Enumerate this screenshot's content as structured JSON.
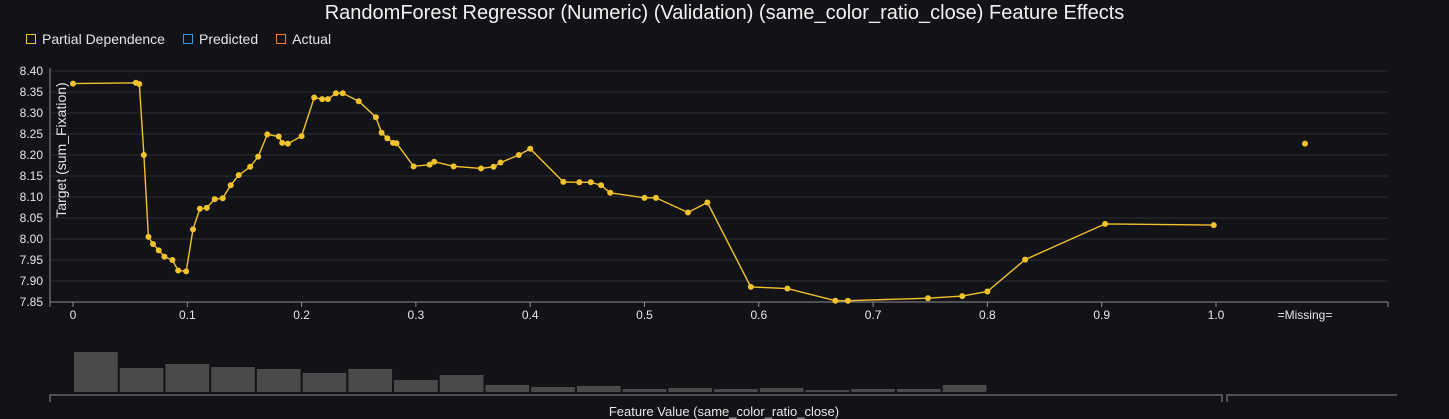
{
  "title": "RandomForest Regressor (Numeric) (Validation) (same_color_ratio_close) Feature Effects",
  "legend": [
    {
      "label": "Partial Dependence",
      "color": "#f2c12e"
    },
    {
      "label": "Predicted",
      "color": "#2e9be6"
    },
    {
      "label": "Actual",
      "color": "#e87e2c"
    }
  ],
  "chart_data": {
    "type": "line",
    "title": "RandomForest Regressor (Numeric) (Validation) (same_color_ratio_close) Feature Effects",
    "xlabel": "Feature Value (same_color_ratio_close)",
    "ylabel": "Target (sum_Fixation)",
    "xlim": [
      -0.02,
      1.15
    ],
    "ylim": [
      7.85,
      8.4
    ],
    "x_ticks": [
      "0",
      "0.1",
      "0.2",
      "0.3",
      "0.4",
      "0.5",
      "0.6",
      "0.7",
      "0.8",
      "0.9",
      "1.0"
    ],
    "y_ticks": [
      "7.85",
      "7.90",
      "7.95",
      "8.00",
      "8.05",
      "8.10",
      "8.15",
      "8.20",
      "8.25",
      "8.30",
      "8.35",
      "8.40"
    ],
    "missing_label": "=Missing=",
    "grid": true,
    "legend_position": "top-left",
    "series": [
      {
        "name": "Partial Dependence",
        "color": "#f2c12e",
        "x": [
          0,
          0.055,
          0.058,
          0.062,
          0.066,
          0.07,
          0.075,
          0.08,
          0.087,
          0.092,
          0.099,
          0.105,
          0.111,
          0.117,
          0.124,
          0.131,
          0.138,
          0.145,
          0.155,
          0.162,
          0.17,
          0.18,
          0.183,
          0.188,
          0.2,
          0.211,
          0.218,
          0.223,
          0.23,
          0.236,
          0.25,
          0.265,
          0.27,
          0.275,
          0.28,
          0.283,
          0.298,
          0.312,
          0.316,
          0.333,
          0.357,
          0.368,
          0.374,
          0.39,
          0.4,
          0.429,
          0.443,
          0.453,
          0.462,
          0.47,
          0.5,
          0.51,
          0.538,
          0.555,
          0.593,
          0.625,
          0.667,
          0.678,
          0.748,
          0.778,
          0.8,
          0.833,
          0.903,
          0.998
        ],
        "y": [
          8.37,
          8.372,
          8.369,
          8.2,
          8.005,
          7.988,
          7.973,
          7.958,
          7.95,
          7.925,
          7.923,
          8.023,
          8.072,
          8.074,
          8.095,
          8.097,
          8.128,
          8.152,
          8.172,
          8.196,
          8.249,
          8.244,
          8.229,
          8.227,
          8.245,
          8.337,
          8.333,
          8.333,
          8.347,
          8.347,
          8.328,
          8.29,
          8.253,
          8.24,
          8.229,
          8.228,
          8.173,
          8.177,
          8.184,
          8.173,
          8.168,
          8.172,
          8.182,
          8.2,
          8.215,
          8.136,
          8.135,
          8.135,
          8.128,
          8.11,
          8.098,
          8.098,
          8.063,
          8.087,
          7.886,
          7.882,
          7.853,
          7.853,
          7.859,
          7.864,
          7.875,
          7.951,
          8.036,
          8.033
        ]
      }
    ],
    "missing_point": {
      "series": "Partial Dependence",
      "y": 8.227
    },
    "histogram": {
      "bin_width": 0.04,
      "bin_starts": [
        0,
        0.04,
        0.08,
        0.12,
        0.16,
        0.2,
        0.24,
        0.28,
        0.32,
        0.36,
        0.4,
        0.44,
        0.48,
        0.52,
        0.56,
        0.6,
        0.64,
        0.68,
        0.72,
        0.76,
        0.8
      ],
      "counts": [
        40,
        24,
        28,
        25,
        23,
        19,
        23,
        12,
        17,
        7,
        5,
        6,
        3,
        4,
        3,
        4,
        2,
        3,
        3,
        7,
        0
      ]
    }
  }
}
